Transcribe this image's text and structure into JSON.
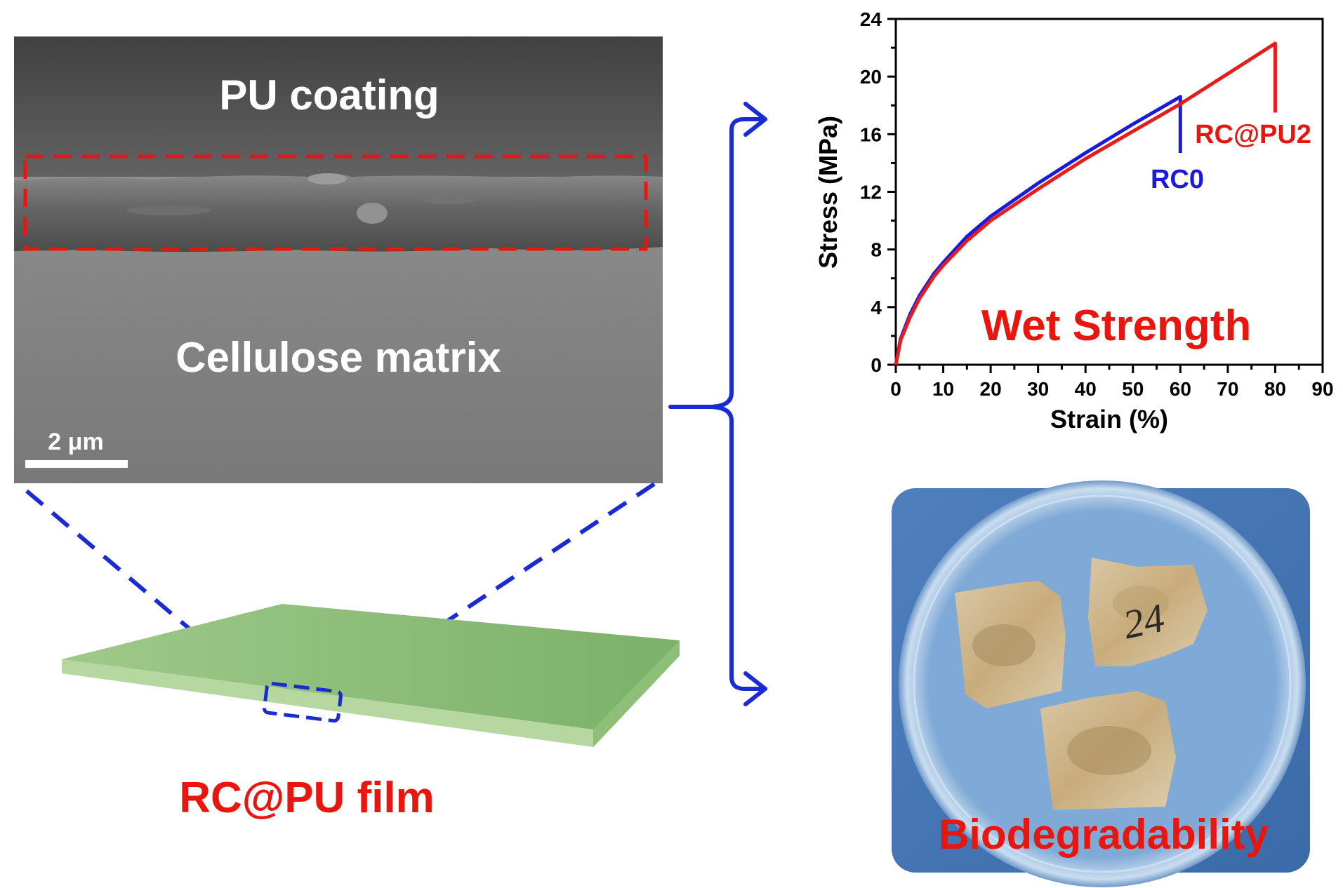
{
  "sem": {
    "top_label": "PU coating",
    "bottom_label": "Cellulose matrix",
    "scale_bar": "2 μm"
  },
  "film": {
    "label": "RC@PU film"
  },
  "chart_data": {
    "type": "line",
    "title": "Wet Strength",
    "xlabel": "Strain (%)",
    "ylabel": "Stress (MPa)",
    "xlim": [
      0,
      90
    ],
    "ylim": [
      0,
      24
    ],
    "xticks": [
      0,
      10,
      20,
      30,
      40,
      50,
      60,
      70,
      80,
      90
    ],
    "yticks": [
      0,
      4,
      8,
      12,
      16,
      20,
      24
    ],
    "series": [
      {
        "name": "RC0",
        "color": "#1a1adf",
        "x": [
          0,
          1,
          3,
          5,
          8,
          10,
          15,
          20,
          30,
          40,
          50,
          60,
          60
        ],
        "y": [
          0,
          1.8,
          3.5,
          4.8,
          6.3,
          7.1,
          8.9,
          10.3,
          12.6,
          14.7,
          16.7,
          18.6,
          14.7
        ]
      },
      {
        "name": "RC@PU2",
        "color": "#e81b1b",
        "x": [
          0,
          1,
          3,
          5,
          8,
          10,
          15,
          20,
          30,
          40,
          50,
          60,
          70,
          80,
          80
        ],
        "y": [
          0,
          1.7,
          3.3,
          4.6,
          6.1,
          6.9,
          8.6,
          10.0,
          12.2,
          14.3,
          16.2,
          18.1,
          20.2,
          22.3,
          17.5
        ]
      }
    ]
  },
  "photo": {
    "label": "Biodegradability",
    "sample_marking": "24"
  }
}
